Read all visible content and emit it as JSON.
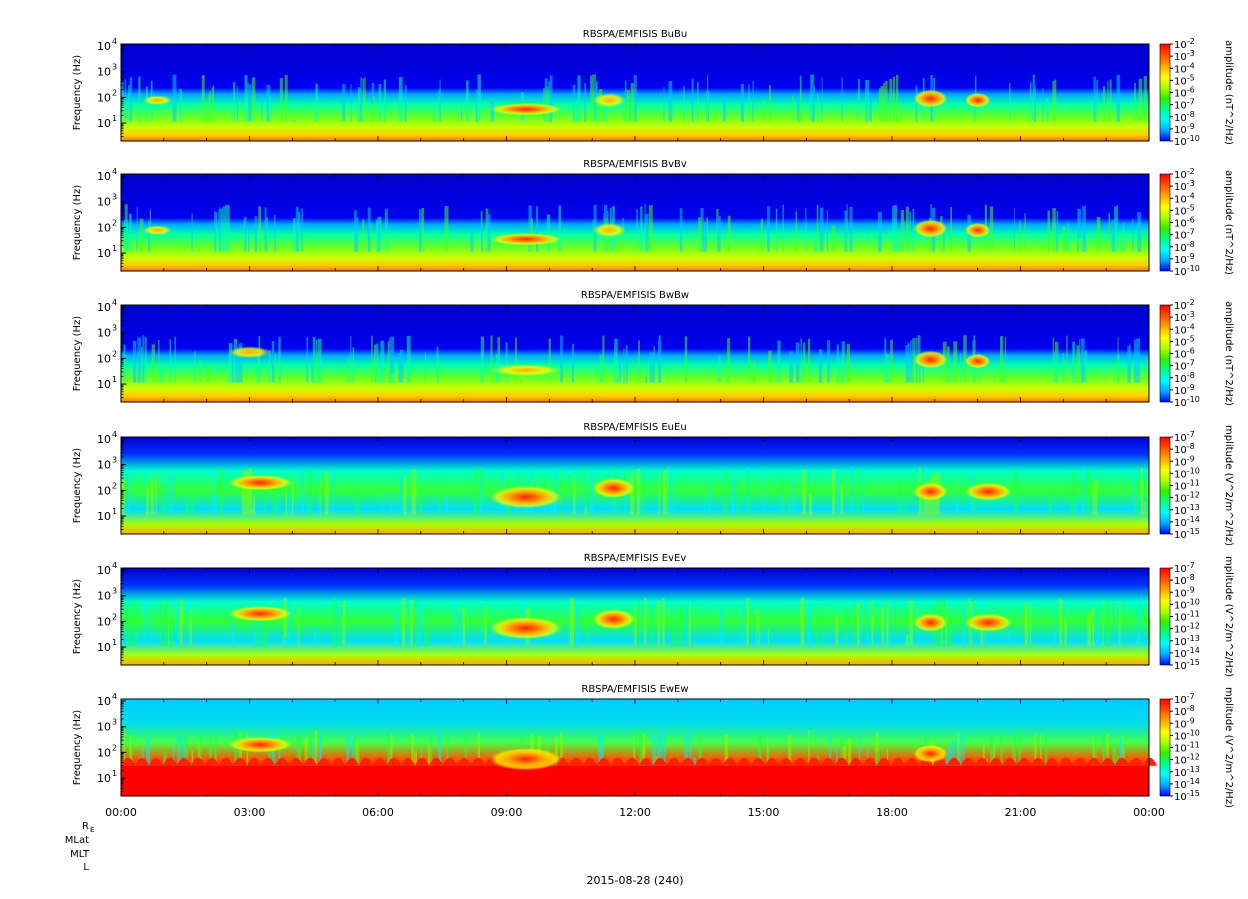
{
  "date_label": "2015-08-28 (240)",
  "ephemeris_labels": [
    "R",
    "MLat",
    "MLT",
    "L"
  ],
  "ephemeris_subscript": "E",
  "colors": {
    "background_blue": "#00008b",
    "colorbar": [
      "#0000ff",
      "#00aaff",
      "#00ffff",
      "#00ff88",
      "#33ee00",
      "#aaff00",
      "#ffff00",
      "#ffaa00",
      "#ff5500",
      "#ff0000"
    ]
  },
  "chart_data": [
    {
      "type": "heatmap",
      "title": "RBSPA/EMFISIS  BuBu",
      "ylabel": "Frequency (Hz)",
      "colorbar_label": "amplitude (nT^2/Hz)",
      "colorbar_ticks": [
        "10-2",
        "10-3",
        "10-4",
        "10-5",
        "10-6",
        "10-7",
        "10-8",
        "10-9",
        "10-10"
      ],
      "y_ticks": [
        "10",
        "10",
        "10",
        "10"
      ],
      "y_tick_exponents": [
        "4",
        "3",
        "2",
        "1"
      ],
      "xlim": [
        "00:00",
        "24:00"
      ],
      "ylim": [
        2,
        12000
      ],
      "y_scale": "log",
      "clim": [
        1e-10,
        0.01
      ],
      "features": [
        {
          "x_hours": [
            8.6,
            10.3
          ],
          "y_hz": [
            20,
            60
          ],
          "level": "high"
        },
        {
          "x_hours": [
            18.5,
            19.3
          ],
          "y_hz": [
            40,
            200
          ],
          "level": "high"
        },
        {
          "x_hours": [
            19.7,
            20.3
          ],
          "y_hz": [
            40,
            150
          ],
          "level": "high"
        },
        {
          "x_hours": [
            0.5,
            1.2
          ],
          "y_hz": [
            50,
            120
          ],
          "level": "medium"
        },
        {
          "x_hours": [
            11.0,
            11.8
          ],
          "y_hz": [
            40,
            150
          ],
          "level": "medium"
        }
      ]
    },
    {
      "type": "heatmap",
      "title": "RBSPA/EMFISIS  BvBv",
      "ylabel": "Frequency (Hz)",
      "colorbar_label": "amplitude (nT^2/Hz)",
      "colorbar_ticks": [
        "10-2",
        "10-3",
        "10-4",
        "10-5",
        "10-6",
        "10-7",
        "10-8",
        "10-9",
        "10-10"
      ],
      "y_ticks": [
        "10",
        "10",
        "10",
        "10"
      ],
      "y_tick_exponents": [
        "4",
        "3",
        "2",
        "1"
      ],
      "xlim": [
        "00:00",
        "24:00"
      ],
      "ylim": [
        2,
        12000
      ],
      "y_scale": "log",
      "clim": [
        1e-10,
        0.01
      ],
      "features": [
        {
          "x_hours": [
            8.6,
            10.3
          ],
          "y_hz": [
            20,
            60
          ],
          "level": "high"
        },
        {
          "x_hours": [
            18.5,
            19.3
          ],
          "y_hz": [
            40,
            200
          ],
          "level": "high"
        },
        {
          "x_hours": [
            19.7,
            20.3
          ],
          "y_hz": [
            40,
            150
          ],
          "level": "high"
        },
        {
          "x_hours": [
            0.5,
            1.2
          ],
          "y_hz": [
            50,
            120
          ],
          "level": "medium"
        },
        {
          "x_hours": [
            11.0,
            11.8
          ],
          "y_hz": [
            40,
            150
          ],
          "level": "medium"
        }
      ]
    },
    {
      "type": "heatmap",
      "title": "RBSPA/EMFISIS  BwBw",
      "ylabel": "Frequency (Hz)",
      "colorbar_label": "amplitude (nT^2/Hz)",
      "colorbar_ticks": [
        "10-2",
        "10-3",
        "10-4",
        "10-5",
        "10-6",
        "10-7",
        "10-8",
        "10-9",
        "10-10"
      ],
      "y_ticks": [
        "10",
        "10",
        "10",
        "10"
      ],
      "y_tick_exponents": [
        "4",
        "3",
        "2",
        "1"
      ],
      "xlim": [
        "00:00",
        "24:00"
      ],
      "ylim": [
        2,
        12000
      ],
      "y_scale": "log",
      "clim": [
        1e-10,
        0.01
      ],
      "features": [
        {
          "x_hours": [
            8.6,
            10.3
          ],
          "y_hz": [
            20,
            60
          ],
          "level": "medium"
        },
        {
          "x_hours": [
            18.5,
            19.3
          ],
          "y_hz": [
            40,
            200
          ],
          "level": "high"
        },
        {
          "x_hours": [
            19.7,
            20.3
          ],
          "y_hz": [
            40,
            150
          ],
          "level": "high"
        },
        {
          "x_hours": [
            2.5,
            3.5
          ],
          "y_hz": [
            100,
            300
          ],
          "level": "medium"
        }
      ]
    },
    {
      "type": "heatmap",
      "title": "RBSPA/EMFISIS  EuEu",
      "ylabel": "Frequency (Hz)",
      "colorbar_label": "mplitude (V^2/m^2/Hz)",
      "colorbar_ticks": [
        "10-7",
        "10-8",
        "10-9",
        "10-10",
        "10-11",
        "10-12",
        "10-13",
        "10-14",
        "10-15"
      ],
      "y_ticks": [
        "10",
        "10",
        "10",
        "10"
      ],
      "y_tick_exponents": [
        "4",
        "3",
        "2",
        "1"
      ],
      "xlim": [
        "00:00",
        "24:00"
      ],
      "ylim": [
        2,
        12000
      ],
      "y_scale": "log",
      "clim": [
        1e-15,
        1e-07
      ],
      "features": [
        {
          "x_hours": [
            2.5,
            4.0
          ],
          "y_hz": [
            100,
            400
          ],
          "level": "high"
        },
        {
          "x_hours": [
            8.6,
            10.3
          ],
          "y_hz": [
            20,
            150
          ],
          "level": "high"
        },
        {
          "x_hours": [
            11.0,
            12.0
          ],
          "y_hz": [
            50,
            300
          ],
          "level": "high"
        },
        {
          "x_hours": [
            18.5,
            19.3
          ],
          "y_hz": [
            40,
            200
          ],
          "level": "high"
        },
        {
          "x_hours": [
            19.7,
            20.8
          ],
          "y_hz": [
            40,
            200
          ],
          "level": "high"
        }
      ]
    },
    {
      "type": "heatmap",
      "title": "RBSPA/EMFISIS  EvEv",
      "ylabel": "Frequency (Hz)",
      "colorbar_label": "mplitude (V^2/m^2/Hz)",
      "colorbar_ticks": [
        "10-7",
        "10-8",
        "10-9",
        "10-10",
        "10-11",
        "10-12",
        "10-13",
        "10-14",
        "10-15"
      ],
      "y_ticks": [
        "10",
        "10",
        "10",
        "10"
      ],
      "y_tick_exponents": [
        "4",
        "3",
        "2",
        "1"
      ],
      "xlim": [
        "00:00",
        "24:00"
      ],
      "ylim": [
        2,
        12000
      ],
      "y_scale": "log",
      "clim": [
        1e-15,
        1e-07
      ],
      "features": [
        {
          "x_hours": [
            2.5,
            4.0
          ],
          "y_hz": [
            100,
            400
          ],
          "level": "high"
        },
        {
          "x_hours": [
            8.6,
            10.3
          ],
          "y_hz": [
            20,
            150
          ],
          "level": "high"
        },
        {
          "x_hours": [
            11.0,
            12.0
          ],
          "y_hz": [
            50,
            300
          ],
          "level": "high"
        },
        {
          "x_hours": [
            18.5,
            19.3
          ],
          "y_hz": [
            40,
            200
          ],
          "level": "high"
        },
        {
          "x_hours": [
            19.7,
            20.8
          ],
          "y_hz": [
            40,
            200
          ],
          "level": "high"
        }
      ]
    },
    {
      "type": "heatmap",
      "title": "RBSPA/EMFISIS  EwEw",
      "ylabel": "Frequency (Hz)",
      "colorbar_label": "mplitude (V^2/m^2/Hz)",
      "colorbar_ticks": [
        "10-7",
        "10-8",
        "10-9",
        "10-10",
        "10-11",
        "10-12",
        "10-13",
        "10-14",
        "10-15"
      ],
      "y_ticks": [
        "10",
        "10",
        "10",
        "10"
      ],
      "y_tick_exponents": [
        "4",
        "3",
        "2",
        "1"
      ],
      "xlim": [
        "00:00",
        "24:00"
      ],
      "ylim": [
        2,
        12000
      ],
      "y_scale": "log",
      "clim": [
        1e-15,
        1e-07
      ],
      "x_ticks": [
        "00:00",
        "03:00",
        "06:00",
        "09:00",
        "12:00",
        "15:00",
        "18:00",
        "21:00",
        "00:00"
      ],
      "features": [
        {
          "x_hours": [
            0.0,
            24.0
          ],
          "y_hz": [
            2,
            30
          ],
          "level": "saturated"
        },
        {
          "x_hours": [
            2.5,
            4.0
          ],
          "y_hz": [
            100,
            400
          ],
          "level": "high"
        },
        {
          "x_hours": [
            8.6,
            10.3
          ],
          "y_hz": [
            20,
            150
          ],
          "level": "high"
        },
        {
          "x_hours": [
            18.5,
            19.3
          ],
          "y_hz": [
            40,
            200
          ],
          "level": "high"
        }
      ]
    }
  ]
}
